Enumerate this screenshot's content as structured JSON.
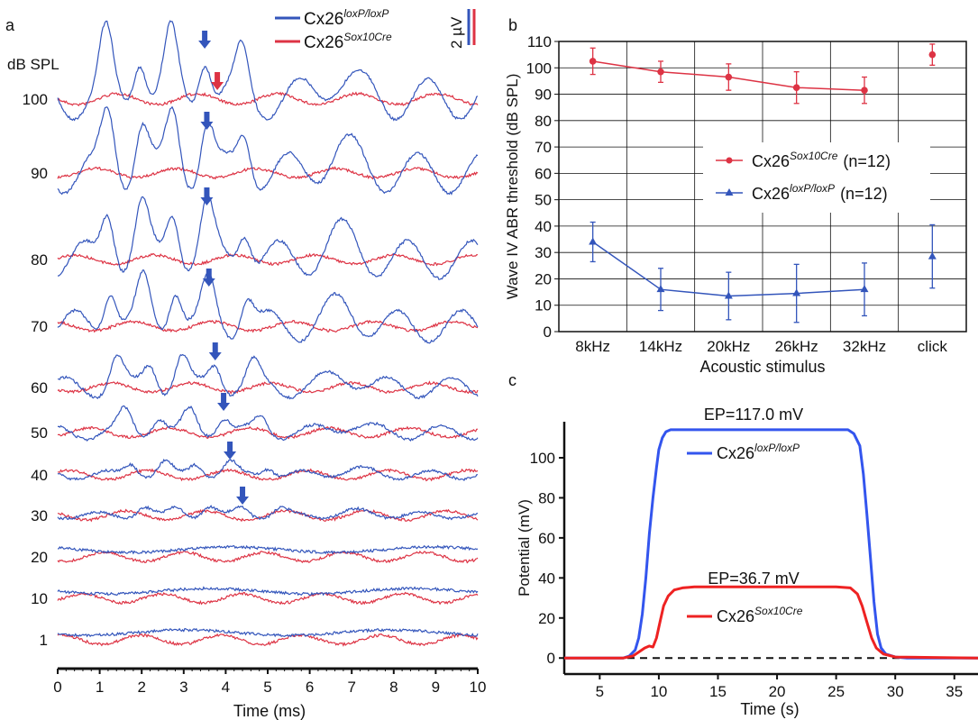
{
  "chart_data": [
    {
      "panel": "a",
      "type": "line",
      "xlabel": "Time (ms)",
      "xlim": [
        0,
        10
      ],
      "xticks": [
        "0",
        "1",
        "2",
        "3",
        "4",
        "5",
        "6",
        "7",
        "8",
        "9",
        "10"
      ],
      "row_header": "dB SPL",
      "levels": [
        "100",
        "90",
        "80",
        "70",
        "60",
        "50",
        "40",
        "30",
        "20",
        "10",
        "1"
      ],
      "legend": [
        {
          "base": "Cx26",
          "sup": "loxP/loxP",
          "color": "#3355bb"
        },
        {
          "base": "Cx26",
          "sup": "Sox10Cre",
          "color": "#dd3344"
        }
      ],
      "scale_bar": "2 µV",
      "wave_iv_arrow_ms": {
        "loxP": [
          3.5,
          3.55,
          3.55,
          3.6,
          3.75,
          3.95,
          4.1,
          4.4,
          null,
          null,
          null
        ],
        "sox10": [
          3.8,
          null,
          null,
          null,
          null,
          null,
          null,
          null,
          null,
          null,
          null
        ]
      },
      "blue_amplitude_uV": [
        3.2,
        3.2,
        3.0,
        2.5,
        1.6,
        1.1,
        0.7,
        0.5,
        0.25,
        0.25,
        0.25
      ],
      "red_amplitude_uV": [
        0.3,
        0.25,
        0.25,
        0.25,
        0.25,
        0.25,
        0.25,
        0.25,
        0.25,
        0.25,
        0.25
      ]
    },
    {
      "panel": "b",
      "type": "line",
      "xlabel": "Acoustic stimulus",
      "ylabel": "Wave IV ABR threshold (dB SPL)",
      "ylim": [
        0,
        110
      ],
      "yticks": [
        0,
        10,
        20,
        30,
        40,
        50,
        60,
        70,
        80,
        90,
        100,
        110
      ],
      "categories": [
        "8kHz",
        "14kHz",
        "20kHz",
        "26kHz",
        "32kHz",
        "click"
      ],
      "grid": true,
      "legend_position": "center-right",
      "series": [
        {
          "name": "Cx26",
          "sup": "Sox10Cre",
          "n": "(n=12)",
          "color": "#dd3344",
          "marker": "circle",
          "values": [
            102.5,
            98.5,
            96.5,
            92.5,
            91.5,
            105
          ],
          "errors": [
            5,
            4,
            5,
            6,
            5,
            4
          ]
        },
        {
          "name": "Cx26",
          "sup": "loxP/loxP",
          "n": "(n=12)",
          "color": "#3355bb",
          "marker": "triangle",
          "values": [
            34,
            16,
            13.5,
            14.5,
            16,
            28.5
          ],
          "errors": [
            7.5,
            8,
            9,
            11,
            10,
            12
          ]
        }
      ]
    },
    {
      "panel": "c",
      "type": "line",
      "xlabel": "Time (s)",
      "ylabel": "Potential (mV)",
      "xlim": [
        2,
        37
      ],
      "ylim": [
        -8,
        118
      ],
      "xticks": [
        5,
        10,
        15,
        20,
        25,
        30,
        35
      ],
      "yticks": [
        0,
        20,
        40,
        60,
        80,
        100
      ],
      "annotations": [
        "EP=117.0 mV",
        "EP=36.7 mV"
      ],
      "series": [
        {
          "name": "Cx26",
          "sup": "loxP/loxP",
          "color": "#3355ee",
          "x": [
            2,
            7,
            7.5,
            8,
            8.3,
            8.6,
            8.9,
            9.2,
            9.5,
            9.8,
            10,
            10.3,
            10.6,
            11,
            12,
            24,
            26,
            26.5,
            27,
            27.3,
            27.6,
            27.9,
            28.2,
            28.5,
            28.8,
            29.2,
            30,
            31,
            37
          ],
          "y": [
            0,
            0,
            1,
            4,
            10,
            22,
            40,
            62,
            80,
            95,
            104,
            110,
            113,
            114,
            114,
            114,
            114,
            112,
            106,
            92,
            72,
            50,
            28,
            12,
            5,
            2,
            0.5,
            0,
            0
          ]
        },
        {
          "name": "Cx26",
          "sup": "Sox10Cre",
          "color": "#ee2222",
          "x": [
            2,
            7,
            7.8,
            8.3,
            8.8,
            9.2,
            9.5,
            9.8,
            10.1,
            10.4,
            10.8,
            11.3,
            12,
            13,
            25,
            26.2,
            26.8,
            27.2,
            27.6,
            28,
            28.4,
            29,
            30,
            37
          ],
          "y": [
            0,
            0,
            1,
            3,
            5,
            6,
            5.5,
            10,
            18,
            26,
            31,
            34,
            35,
            35.5,
            35.5,
            35,
            32,
            26,
            18,
            10,
            5,
            2,
            0.5,
            0
          ]
        }
      ]
    }
  ],
  "labels": {
    "a": "a",
    "b": "b",
    "c": "c"
  }
}
